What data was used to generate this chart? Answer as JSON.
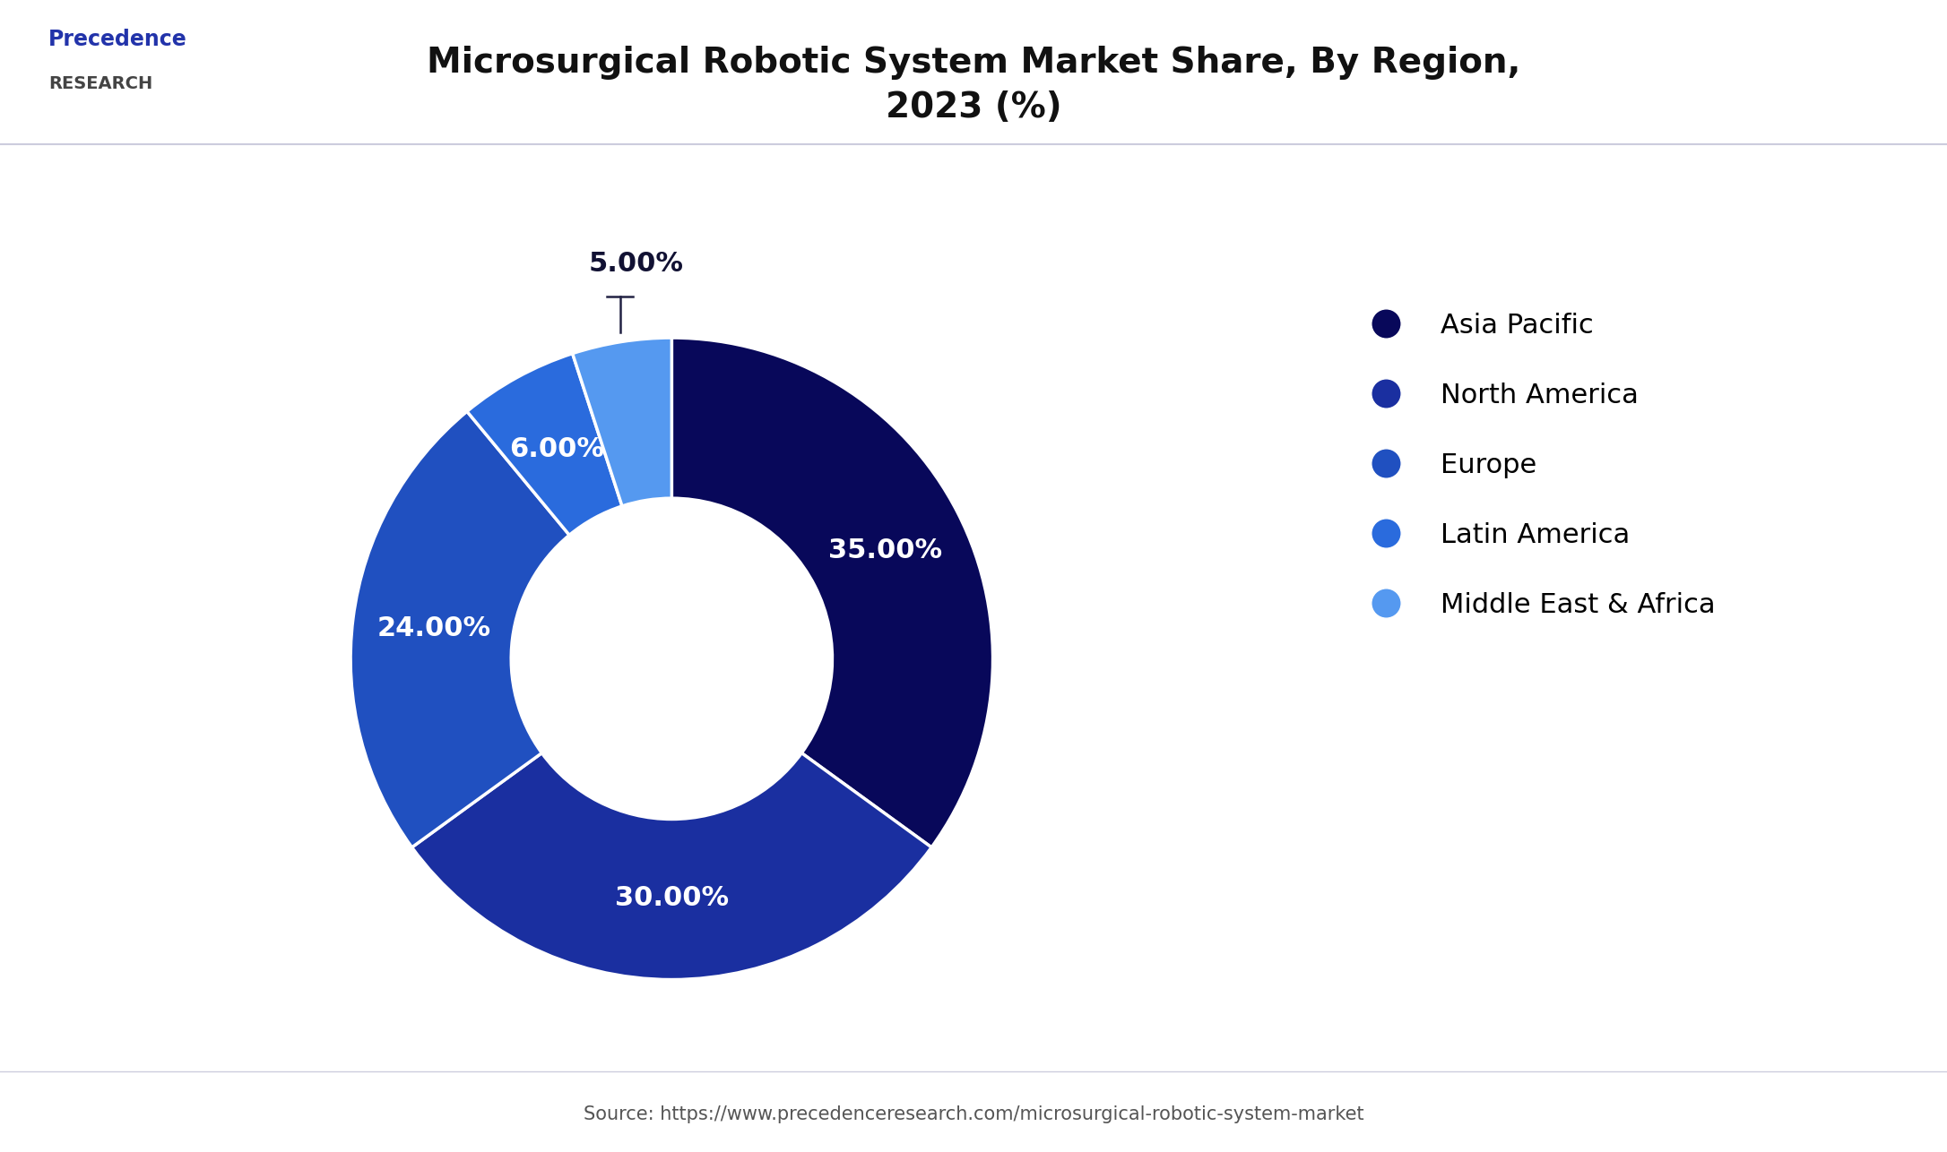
{
  "title": "Microsurgical Robotic System Market Share, By Region,\n2023 (%)",
  "labels": [
    "Asia Pacific",
    "North America",
    "Europe",
    "Latin America",
    "Middle East & Africa"
  ],
  "values": [
    35.0,
    30.0,
    24.0,
    6.0,
    5.0
  ],
  "colors": [
    "#08085a",
    "#1a2fa0",
    "#2050c0",
    "#2a6bdd",
    "#5599f0"
  ],
  "pct_labels": [
    "35.00%",
    "30.00%",
    "24.00%",
    "6.00%",
    "5.00%"
  ],
  "source_text": "Source: https://www.precedenceresearch.com/microsurgical-robotic-system-market",
  "background_color": "#ffffff",
  "title_fontsize": 28,
  "legend_fontsize": 22,
  "pct_fontsize": 22,
  "source_fontsize": 15,
  "donut_width": 0.5
}
